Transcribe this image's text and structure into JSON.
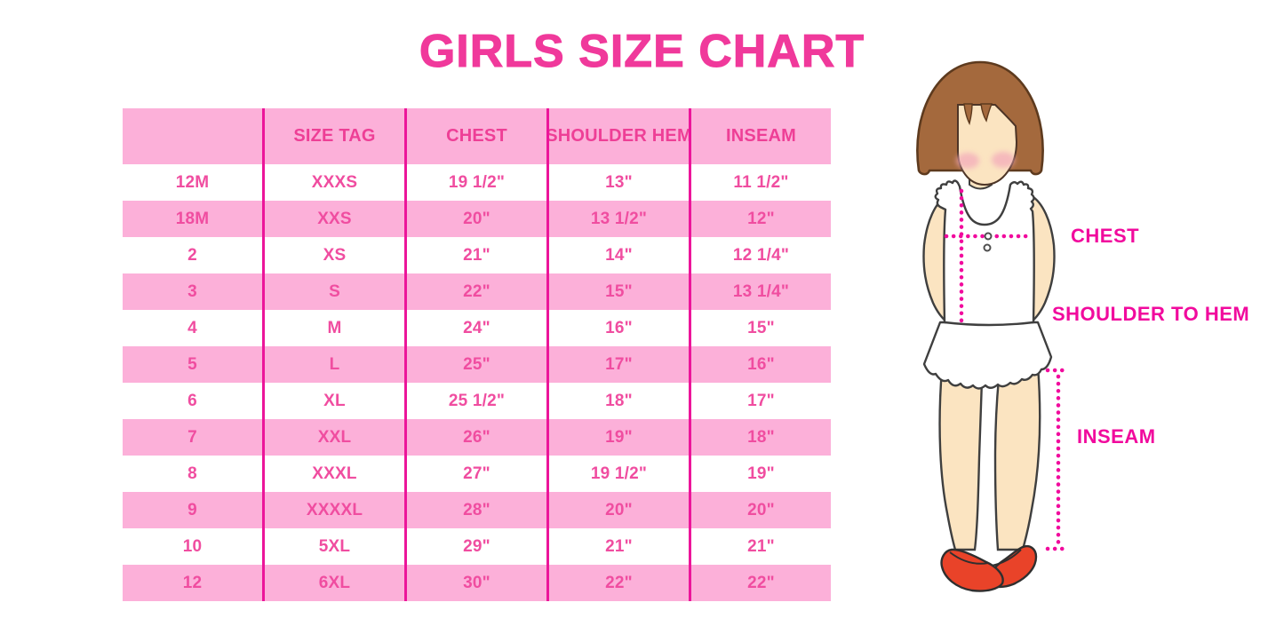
{
  "title": "GIRLS SIZE CHART",
  "chart_data": {
    "type": "table",
    "title": "GIRLS SIZE CHART",
    "columns": [
      "",
      "SIZE TAG",
      "CHEST",
      "SHOULDER HEM",
      "INSEAM"
    ],
    "rows": [
      [
        "12M",
        "XXXS",
        "19 1/2\"",
        "13\"",
        "11 1/2\""
      ],
      [
        "18M",
        "XXS",
        "20\"",
        "13 1/2\"",
        "12\""
      ],
      [
        "2",
        "XS",
        "21\"",
        "14\"",
        "12 1/4\""
      ],
      [
        "3",
        "S",
        "22\"",
        "15\"",
        "13 1/4\""
      ],
      [
        "4",
        "M",
        "24\"",
        "16\"",
        "15\""
      ],
      [
        "5",
        "L",
        "25\"",
        "17\"",
        "16\""
      ],
      [
        "6",
        "XL",
        "25 1/2\"",
        "18\"",
        "17\""
      ],
      [
        "7",
        "XXL",
        "26\"",
        "19\"",
        "18\""
      ],
      [
        "8",
        "XXXL",
        "27\"",
        "19 1/2\"",
        "19\""
      ],
      [
        "9",
        "XXXXL",
        "28\"",
        "20\"",
        "20\""
      ],
      [
        "10",
        "5XL",
        "29\"",
        "21\"",
        "21\""
      ],
      [
        "12",
        "6XL",
        "30\"",
        "22\"",
        "22\""
      ]
    ]
  },
  "diagram": {
    "labels": {
      "chest": "CHEST",
      "shoulder_to_hem": "SHOULDER TO HEM",
      "inseam": "INSEAM"
    }
  },
  "colors": {
    "title_pink": "#f0399b",
    "header_text_pink": "#ee3f96",
    "cell_text_pink": "#f04da0",
    "row_pink": "#fcb0d9",
    "line_magenta": "#ec159a",
    "label_magenta": "#f10a9d",
    "dot_magenta": "#f10a9d",
    "hair_brown": "#a4693d",
    "hair_outline": "#5d3a1e",
    "skin": "#fbe4c1",
    "outline_dark": "#3f3f3f",
    "blush_pink": "#f3a7ba",
    "shoe_red": "#e94329"
  }
}
